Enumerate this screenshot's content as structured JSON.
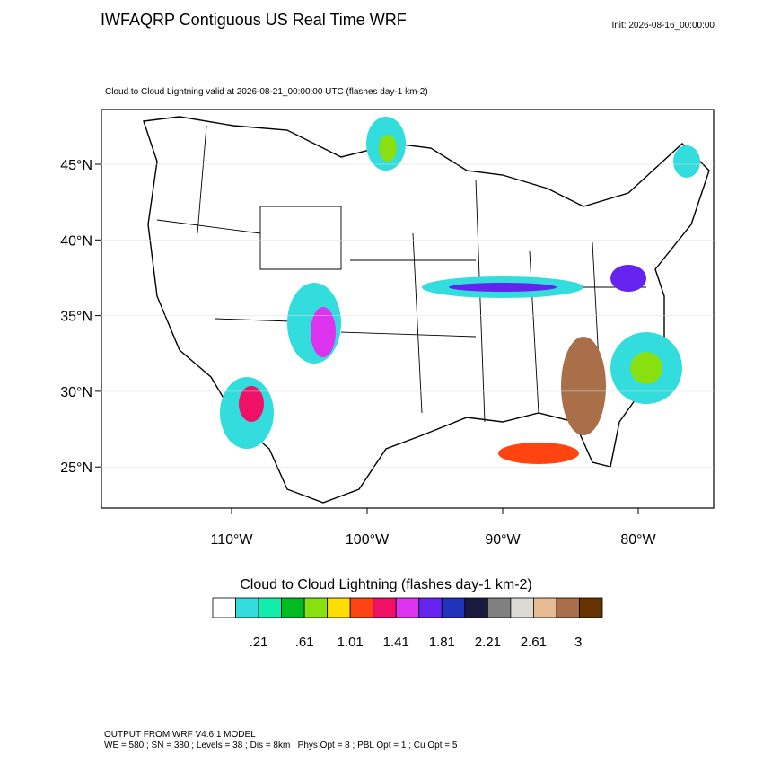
{
  "header": {
    "title": "IWFAQRP Contiguous US Real Time WRF",
    "init": "Init: 2026-08-16_00:00:00"
  },
  "map": {
    "subtitle": "Cloud to Cloud Lightning valid at 2026-08-21_00:00:00 UTC   (flashes day-1 km-2)",
    "lat_ticks": [
      {
        "value": 45,
        "label": "45°N"
      },
      {
        "value": 40,
        "label": "40°N"
      },
      {
        "value": 35,
        "label": "35°N"
      },
      {
        "value": 30,
        "label": "30°N"
      },
      {
        "value": 25,
        "label": "25°N"
      }
    ],
    "lon_ticks": [
      {
        "value": -110,
        "label": "110°W"
      },
      {
        "value": -100,
        "label": "100°W"
      },
      {
        "value": -90,
        "label": "90°W"
      },
      {
        "value": -80,
        "label": "80°W"
      }
    ]
  },
  "colorbar": {
    "title": "Cloud to Cloud Lightning  (flashes day-1 km-2)",
    "colors": [
      "#ffffff",
      "#33dddd",
      "#11eeaa",
      "#00bb22",
      "#88e011",
      "#ffdd00",
      "#ff4411",
      "#ee1166",
      "#dd33ee",
      "#6622ee",
      "#2233bb",
      "#1a1a40",
      "#808080",
      "#dddad4",
      "#e6bb94",
      "#a86f48",
      "#663300"
    ],
    "ticks": [
      {
        "value": 0.21,
        "label": ".21"
      },
      {
        "value": 0.61,
        "label": ".61"
      },
      {
        "value": 1.01,
        "label": "1.01"
      },
      {
        "value": 1.41,
        "label": "1.41"
      },
      {
        "value": 1.81,
        "label": "1.81"
      },
      {
        "value": 2.21,
        "label": "2.21"
      },
      {
        "value": 2.61,
        "label": "2.61"
      },
      3
    ]
  },
  "footer": {
    "line1": "OUTPUT FROM WRF V4.6.1 MODEL",
    "line2": "WE = 580 ; SN = 380 ; Levels = 38 ; Dis = 8km ; Phys Opt = 8 ; PBL Opt = 1 ; Cu Opt = 5"
  }
}
